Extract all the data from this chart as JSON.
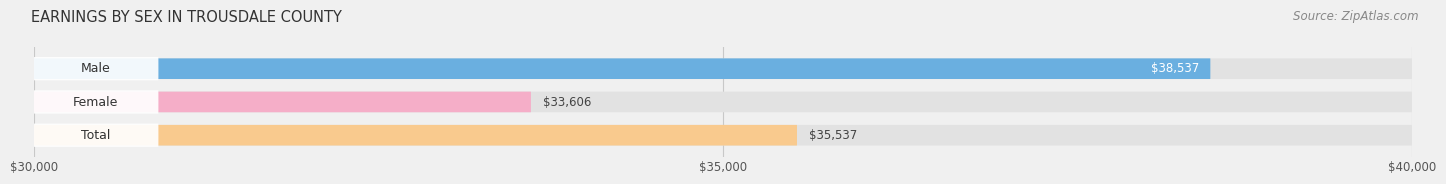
{
  "title": "EARNINGS BY SEX IN TROUSDALE COUNTY",
  "source": "Source: ZipAtlas.com",
  "categories": [
    "Male",
    "Female",
    "Total"
  ],
  "values": [
    38537,
    33606,
    35537
  ],
  "bar_colors": [
    "#6aafe0",
    "#f5aec8",
    "#f9ca8e"
  ],
  "x_min": 30000,
  "x_max": 40000,
  "x_ticks": [
    30000,
    35000,
    40000
  ],
  "x_tick_labels": [
    "$30,000",
    "$35,000",
    "$40,000"
  ],
  "background_color": "#f0f0f0",
  "bar_bg_color": "#e2e2e2",
  "title_fontsize": 10.5,
  "source_fontsize": 8.5,
  "tick_fontsize": 8.5,
  "cat_fontsize": 9,
  "val_fontsize": 8.5,
  "bar_height": 0.62,
  "label_inside_color": "#ffffff",
  "label_outside_color": "#444444",
  "cat_label_color": "#333333",
  "grid_color": "#c8c8c8",
  "title_color": "#333333",
  "source_color": "#888888"
}
